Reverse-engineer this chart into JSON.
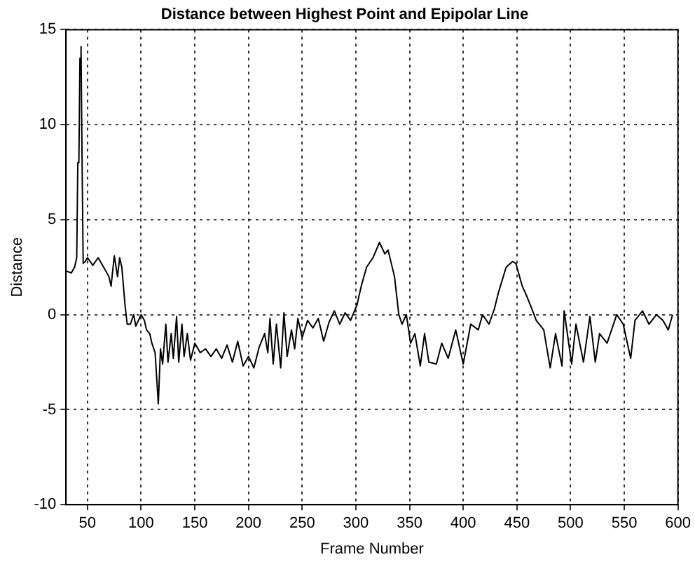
{
  "chart_data": {
    "type": "line",
    "title": "Distance between Highest Point and Epipolar Line",
    "xlabel": "Frame Number",
    "ylabel": "Distance",
    "x": [
      30,
      35,
      38,
      40,
      41,
      42,
      43,
      44,
      45,
      46,
      48,
      50,
      55,
      60,
      65,
      70,
      72,
      75,
      78,
      80,
      82,
      85,
      87,
      90,
      93,
      95,
      100,
      103,
      105,
      108,
      110,
      113,
      116,
      118,
      120,
      123,
      125,
      128,
      130,
      133,
      135,
      138,
      140,
      143,
      146,
      150,
      155,
      160,
      165,
      170,
      175,
      180,
      185,
      190,
      195,
      200,
      205,
      210,
      215,
      218,
      220,
      223,
      226,
      230,
      233,
      236,
      240,
      243,
      246,
      250,
      255,
      260,
      265,
      270,
      275,
      280,
      285,
      290,
      295,
      301,
      305,
      310,
      316,
      322,
      327,
      330,
      336,
      340,
      343,
      347,
      351,
      355,
      360,
      364,
      368,
      375,
      380,
      386,
      393,
      400,
      407,
      414,
      418,
      424,
      429,
      433,
      440,
      446,
      449,
      455,
      459,
      464,
      468,
      475,
      481,
      486,
      492,
      494,
      501,
      505,
      512,
      518,
      523,
      527,
      534,
      543,
      549,
      556,
      560,
      567,
      573,
      580,
      586,
      591,
      595
    ],
    "series": [
      {
        "color": "#000000",
        "values": [
          2.3,
          2.2,
          2.5,
          3,
          8,
          8,
          13.5,
          14.1,
          8,
          2.7,
          2.8,
          3,
          2.6,
          3,
          2.5,
          2,
          1.5,
          3.1,
          2,
          3,
          2.5,
          0.5,
          -0.5,
          -0.5,
          0,
          -0.6,
          0,
          -0.3,
          -0.8,
          -1,
          -1.5,
          -2,
          -4.7,
          -1.8,
          -2.6,
          -0.5,
          -2.5,
          -1,
          -2.3,
          -0.1,
          -2.5,
          -0.5,
          -2.2,
          -1,
          -2.4,
          -1.5,
          -2,
          -1.8,
          -2.2,
          -1.8,
          -2.3,
          -1.6,
          -2.5,
          -1.4,
          -2.7,
          -2.2,
          -2.8,
          -1.7,
          -1,
          -2,
          -0.2,
          -2.6,
          -0.5,
          -2.8,
          0.1,
          -2.2,
          -0.8,
          -1.8,
          -0.2,
          -1.2,
          -0.3,
          -0.7,
          -0.2,
          -1.4,
          -0.4,
          0.2,
          -0.5,
          0.1,
          -0.3,
          0.5,
          1.5,
          2.5,
          3,
          3.8,
          3.2,
          3.4,
          2,
          0,
          -0.5,
          0,
          -1.5,
          -1,
          -2.7,
          -1,
          -2.5,
          -2.6,
          -1.5,
          -2.3,
          -0.8,
          -2.6,
          -0.5,
          -0.8,
          0,
          -0.5,
          0.3,
          1.2,
          2.5,
          2.8,
          2.7,
          1.5,
          1,
          0.3,
          -0.3,
          -0.8,
          -2.8,
          -1,
          -2.7,
          0.2,
          -2.6,
          -0.5,
          -2.5,
          -0.1,
          -2.5,
          -1,
          -1.5,
          0,
          -0.5,
          -2.3,
          -0.3,
          0.2,
          -0.5,
          0,
          -0.3,
          -0.8,
          0
        ]
      }
    ],
    "xlim": [
      30,
      600
    ],
    "xticks": [
      50,
      100,
      150,
      200,
      250,
      300,
      350,
      400,
      450,
      500,
      550,
      600
    ],
    "ylim": [
      -10,
      15
    ],
    "yticks": [
      -10,
      -5,
      0,
      5,
      10,
      15
    ],
    "grid": true,
    "legend": false,
    "marker": "none",
    "line_style": "solid"
  }
}
